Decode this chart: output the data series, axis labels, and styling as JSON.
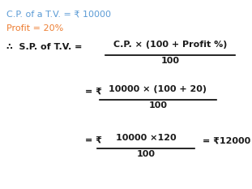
{
  "bg_color": "#ffffff",
  "line1_text": "C.P. of a T.V. = ₹ 10000",
  "line1_color": "#5b9bd5",
  "line2_text": "Profit = 20%",
  "line2_color": "#ed7d31",
  "therefore_symbol": "∴",
  "sp_label": "  S.P. of T.V. =",
  "formula_numerator": "C.P. × (100 + Profit %)",
  "formula_denominator": "100",
  "step2_eq_rupee": "= ₹",
  "step2_numerator": "10000 × (100 + 20)",
  "step2_denominator": "100",
  "step3_eq_rupee": "= ₹",
  "step3_numerator": "10000 ×120",
  "step3_denominator": "100",
  "step3_result": "= ₹12000",
  "text_color": "#1a1a1a",
  "figwidth": 3.11,
  "figheight": 2.33,
  "dpi": 100
}
